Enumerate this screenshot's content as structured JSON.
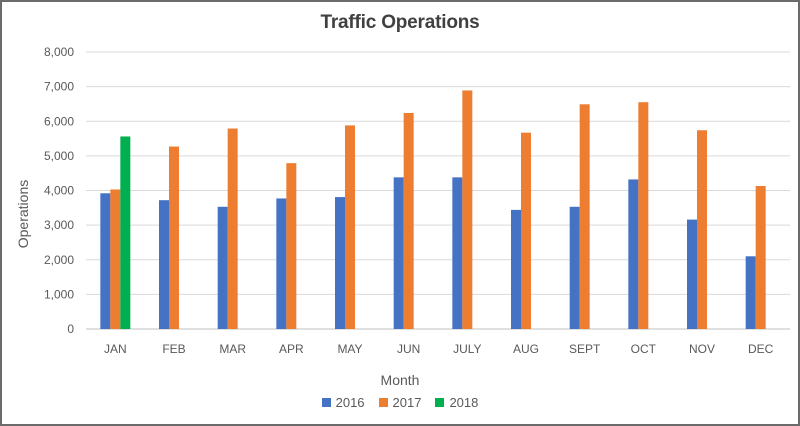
{
  "chart_data": {
    "type": "bar",
    "title": "Traffic Operations",
    "xlabel": "Month",
    "ylabel": "Operations",
    "ylim": [
      0,
      8000
    ],
    "yticks": [
      "0",
      "1,000",
      "2,000",
      "3,000",
      "4,000",
      "5,000",
      "6,000",
      "7,000",
      "8,000"
    ],
    "grid": true,
    "legend_position": "bottom",
    "categories": [
      "JAN",
      "FEB",
      "MAR",
      "APR",
      "MAY",
      "JUN",
      "JULY",
      "AUG",
      "SEPT",
      "OCT",
      "NOV",
      "DEC"
    ],
    "series": [
      {
        "name": "2016",
        "color": "#4472c4",
        "values": [
          3920,
          3720,
          3530,
          3770,
          3810,
          4380,
          4380,
          3440,
          3530,
          4320,
          3160,
          2100
        ]
      },
      {
        "name": "2017",
        "color": "#ed7d31",
        "values": [
          4030,
          5270,
          5790,
          4790,
          5880,
          6240,
          6890,
          5670,
          6490,
          6550,
          5740,
          4130
        ]
      },
      {
        "name": "2018",
        "color": "#00b050",
        "values": [
          5560,
          null,
          null,
          null,
          null,
          null,
          null,
          null,
          null,
          null,
          null,
          null
        ]
      }
    ]
  }
}
